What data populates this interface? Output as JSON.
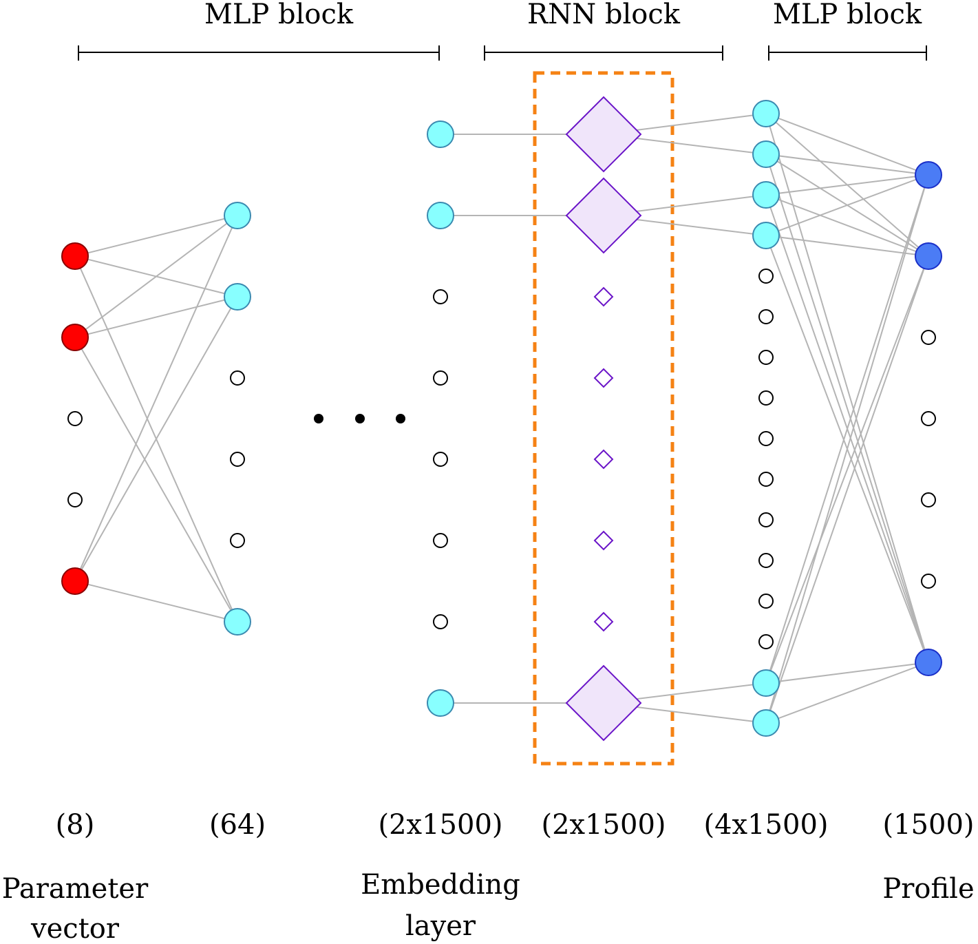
{
  "blocks": [
    {
      "label": "MLP block"
    },
    {
      "label": "RNN block"
    },
    {
      "label": "MLP block"
    }
  ],
  "layers": [
    {
      "dim": "(8)",
      "name": [
        "Parameter",
        "vector"
      ]
    },
    {
      "dim": "(64)",
      "name": []
    },
    {
      "dim": "(2x1500)",
      "name": [
        "Embedding",
        "layer"
      ]
    },
    {
      "dim": "(2x1500)",
      "name": []
    },
    {
      "dim": "(4x1500)",
      "name": []
    },
    {
      "dim": "(1500)",
      "name": [
        "Profile"
      ]
    }
  ],
  "colors": {
    "input": "#ff0000",
    "hidden": "#88ffff",
    "rnn": "#f0e5fa",
    "rnn_stroke": "#6a14c8",
    "output": "#4b7cf5",
    "dashed_box": "#f58214",
    "edge": "#b4b4b4"
  }
}
